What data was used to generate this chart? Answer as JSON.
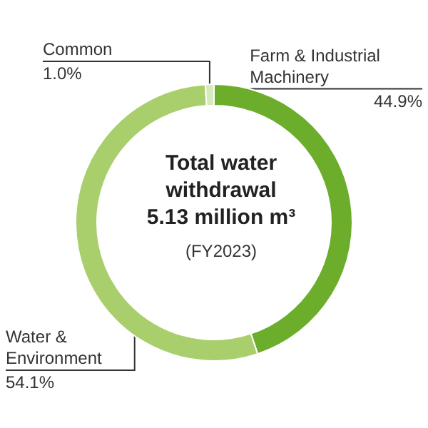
{
  "chart_data": {
    "type": "donut",
    "title": "Total water withdrawal 5.13 million m³",
    "subtitle": "(FY2023)",
    "categories": [
      "Farm & Industrial Machinery",
      "Water & Environment",
      "Common"
    ],
    "values": [
      44.9,
      54.1,
      1.0
    ],
    "colors": [
      "#6cad2b",
      "#a8cf6c",
      "#d8e9bd"
    ],
    "value_labels": [
      "44.9%",
      "54.1%",
      "1.0%"
    ],
    "legend": false
  }
}
